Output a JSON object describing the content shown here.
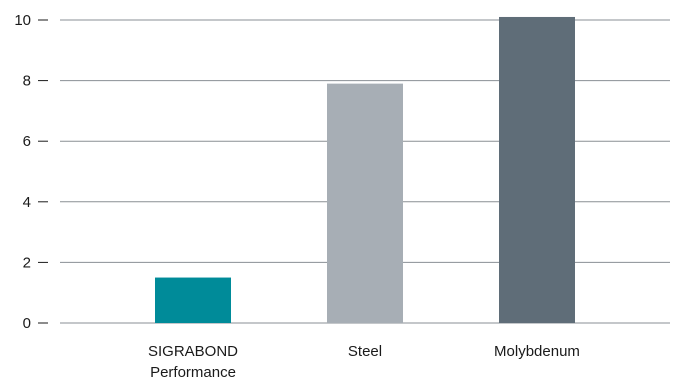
{
  "chart_data": {
    "type": "bar",
    "categories": [
      [
        "SIGRABOND",
        "Performance"
      ],
      [
        "Steel"
      ],
      [
        "Molybdenum"
      ]
    ],
    "values": [
      1.5,
      7.9,
      10.1
    ],
    "colors": [
      "#008b99",
      "#a7aeb5",
      "#5f6d78"
    ],
    "title": "",
    "xlabel": "",
    "ylabel": "",
    "ylim": [
      0,
      10
    ],
    "yticks": [
      0,
      2,
      4,
      6,
      8,
      10
    ],
    "grid": true,
    "legend": "none"
  }
}
